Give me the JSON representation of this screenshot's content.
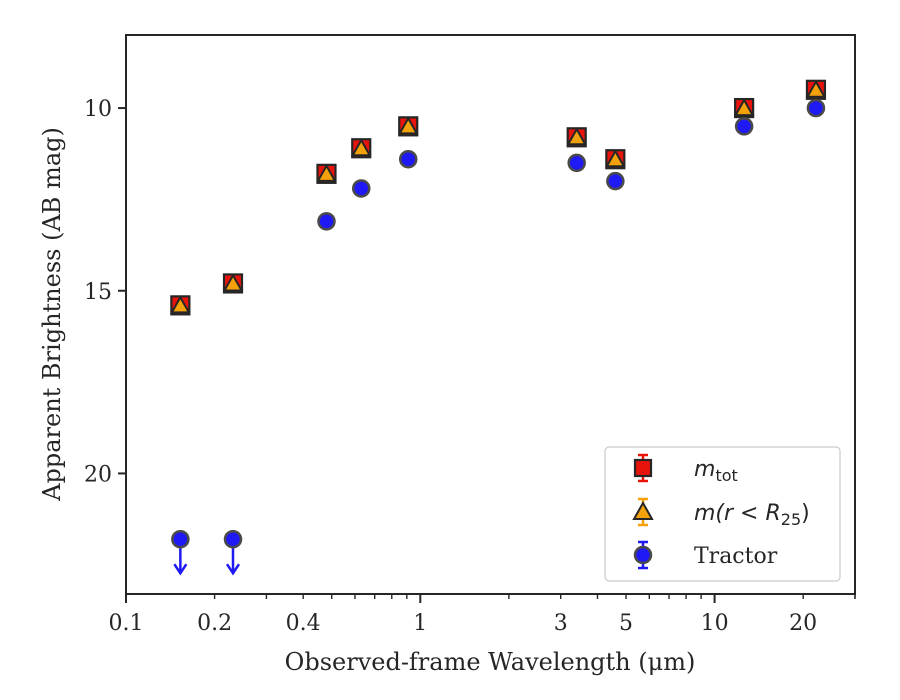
{
  "chart_data": {
    "type": "scatter",
    "title": "",
    "xlabel": "Observed-frame Wavelength (μm)",
    "ylabel": "Apparent Brightness (AB mag)",
    "xscale": "log",
    "yinverted": true,
    "xlim": [
      0.1,
      30
    ],
    "ylim": [
      23.3,
      8.0
    ],
    "xticks": [
      0.1,
      0.2,
      0.4,
      1,
      3,
      5,
      10,
      20
    ],
    "xtick_labels": [
      "0.1",
      "0.2",
      "0.4",
      "1",
      "3",
      "5",
      "10",
      "20"
    ],
    "yticks": [
      10,
      15,
      20
    ],
    "ytick_labels": [
      "10",
      "15",
      "20"
    ],
    "grid": false,
    "legend_position": "lower-right",
    "series": [
      {
        "name": "m_tot",
        "label_main": "m",
        "label_sub": "tot",
        "marker": "square",
        "color": "#e8140c",
        "edge": "#262626",
        "x": [
          0.153,
          0.231,
          0.48,
          0.63,
          0.91,
          3.4,
          4.6,
          12.6,
          22.1
        ],
        "y": [
          15.4,
          14.8,
          11.8,
          11.1,
          10.5,
          10.8,
          11.4,
          10.0,
          9.5
        ]
      },
      {
        "name": "m(r<R25)",
        "label_main": "m(r < R",
        "label_sub": "25",
        "label_end": ")",
        "marker": "triangle",
        "color": "#f5a20a",
        "edge": "#262626",
        "x": [
          0.153,
          0.231,
          0.48,
          0.63,
          0.91,
          3.4,
          4.6,
          12.6,
          22.1
        ],
        "y": [
          15.4,
          14.8,
          11.8,
          11.1,
          10.5,
          10.8,
          11.4,
          10.0,
          9.5
        ]
      },
      {
        "name": "Tractor",
        "marker": "circle",
        "color": "#1f19f5",
        "edge": "#4a4a4a",
        "x": [
          0.153,
          0.231,
          0.48,
          0.63,
          0.91,
          3.4,
          4.6,
          12.6,
          22.1
        ],
        "y": [
          21.8,
          21.8,
          13.1,
          12.2,
          11.4,
          11.5,
          12.0,
          10.5,
          10.0
        ],
        "upper_limit": [
          true,
          true,
          false,
          false,
          false,
          false,
          false,
          false,
          false
        ]
      }
    ]
  }
}
